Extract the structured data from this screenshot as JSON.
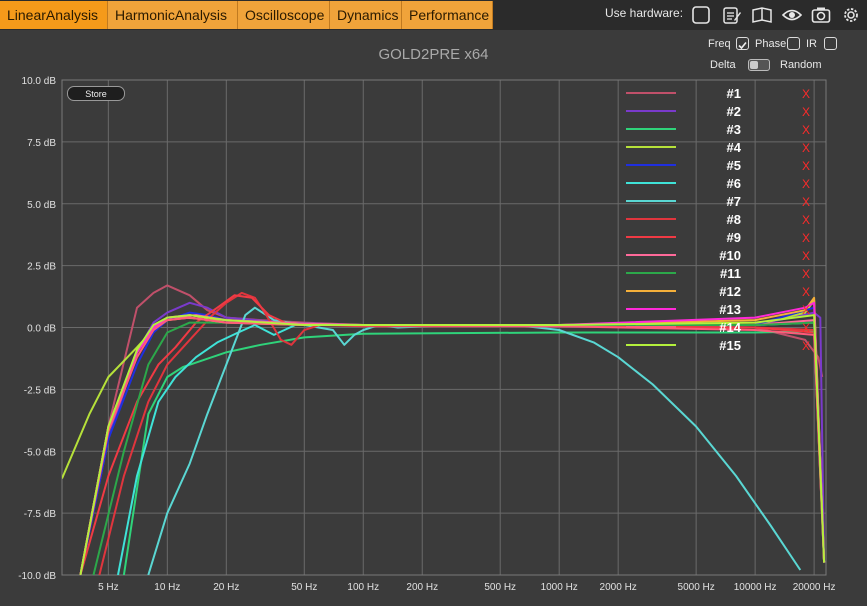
{
  "tabs": [
    {
      "label": "LinearAnalysis"
    },
    {
      "label": "HarmonicAnalysis"
    },
    {
      "label": "Oscilloscope"
    },
    {
      "label": "Dynamics"
    },
    {
      "label": "Performance"
    }
  ],
  "hardware": {
    "label": "Use hardware:",
    "icons": [
      "checkbox-icon",
      "edit-icon",
      "book-icon",
      "eye-icon",
      "camera-icon",
      "gear-icon"
    ]
  },
  "plot_title": "GOLD2PRE x64",
  "options": {
    "freq": "Freq",
    "phase": "Phase",
    "ir": "IR",
    "delta": "Delta",
    "random": "Random",
    "freq_checked": true,
    "phase_checked": false,
    "ir_checked": false
  },
  "store_label": "Store",
  "colors": {
    "bg": "#3b3b3b",
    "tab": "#f0a33a",
    "grid": "#6a6a6a",
    "remove": "#ff2a2a"
  },
  "chart_data": {
    "type": "line",
    "title": "",
    "xscale": "log",
    "xlim": [
      2.9,
      23000
    ],
    "ylim": [
      -10,
      10
    ],
    "xticks": [
      5,
      10,
      20,
      50,
      100,
      200,
      500,
      1000,
      2000,
      5000,
      10000,
      20000
    ],
    "xtick_labels": [
      "5 Hz",
      "10 Hz",
      "20 Hz",
      "50 Hz",
      "100 Hz",
      "200 Hz",
      "500 Hz",
      "1000 Hz",
      "2000 Hz",
      "5000 Hz",
      "10000 Hz",
      "20000 Hz"
    ],
    "yticks": [
      10,
      7.5,
      5,
      2.5,
      0,
      -2.5,
      -5,
      -7.5,
      -10
    ],
    "ytick_labels": [
      "10.0 dB",
      "7.5 dB",
      "5.0 dB",
      "2.5 dB",
      "0.0 dB",
      "-2.5 dB",
      "-5.0 dB",
      "-7.5 dB",
      "-10.0 dB"
    ],
    "grid": true,
    "legend_position": "top-right",
    "remove_symbol": "X",
    "series": [
      {
        "name": "#1",
        "color": "#c0506a",
        "points": [
          [
            3.6,
            -10
          ],
          [
            5,
            -4
          ],
          [
            7,
            0.8
          ],
          [
            8.5,
            1.4
          ],
          [
            10,
            1.7
          ],
          [
            13,
            1.3
          ],
          [
            16,
            0.7
          ],
          [
            20,
            0.4
          ],
          [
            30,
            0.3
          ],
          [
            50,
            0.2
          ],
          [
            100,
            0.1
          ],
          [
            1000,
            0.1
          ],
          [
            10000,
            0.0
          ],
          [
            18000,
            -0.5
          ],
          [
            21000,
            -1.2
          ],
          [
            22000,
            -2
          ]
        ]
      },
      {
        "name": "#2",
        "color": "#7a3acb",
        "points": [
          [
            3.6,
            -10
          ],
          [
            5,
            -4.5
          ],
          [
            7,
            -1
          ],
          [
            8.5,
            0.2
          ],
          [
            10,
            0.6
          ],
          [
            13,
            1.0
          ],
          [
            16,
            0.8
          ],
          [
            20,
            0.4
          ],
          [
            40,
            0.2
          ],
          [
            100,
            0.1
          ],
          [
            1000,
            0.1
          ],
          [
            10000,
            0.1
          ],
          [
            20000,
            0.6
          ],
          [
            21500,
            0.4
          ],
          [
            22500,
            -9.5
          ]
        ]
      },
      {
        "name": "#3",
        "color": "#2fd37a",
        "points": [
          [
            6,
            -10
          ],
          [
            8,
            -3.5
          ],
          [
            10,
            -2.0
          ],
          [
            12,
            -1.6
          ],
          [
            20,
            -1.0
          ],
          [
            30,
            -0.7
          ],
          [
            50,
            -0.4
          ],
          [
            100,
            -0.25
          ],
          [
            1000,
            -0.2
          ],
          [
            10000,
            -0.2
          ],
          [
            20000,
            -0.15
          ],
          [
            22500,
            -9.5
          ]
        ]
      },
      {
        "name": "#4",
        "color": "#b6e13a",
        "points": [
          [
            2.9,
            -6.1
          ],
          [
            4,
            -3.5
          ],
          [
            5,
            -2.0
          ],
          [
            7,
            -0.8
          ],
          [
            8,
            -0.3
          ],
          [
            10,
            0.3
          ],
          [
            12,
            0.4
          ],
          [
            20,
            0.3
          ],
          [
            50,
            0.15
          ],
          [
            100,
            0.1
          ],
          [
            1000,
            0.1
          ],
          [
            10000,
            0.1
          ],
          [
            18000,
            0.6
          ],
          [
            20000,
            1.1
          ],
          [
            22500,
            -9.5
          ]
        ]
      },
      {
        "name": "#5",
        "color": "#1f2fe0",
        "points": [
          [
            3.6,
            -10
          ],
          [
            5,
            -4.5
          ],
          [
            7,
            -1.5
          ],
          [
            8.5,
            -0.2
          ],
          [
            10,
            0.3
          ],
          [
            13,
            0.6
          ],
          [
            16,
            0.5
          ],
          [
            20,
            0.3
          ],
          [
            50,
            0.1
          ],
          [
            1000,
            0.05
          ],
          [
            10000,
            0.1
          ],
          [
            20000,
            0.8
          ],
          [
            22500,
            -9.5
          ]
        ]
      },
      {
        "name": "#6",
        "color": "#3fe3d8",
        "points": [
          [
            5.6,
            -10
          ],
          [
            7,
            -6
          ],
          [
            9,
            -3
          ],
          [
            11,
            -2
          ],
          [
            14,
            -1.2
          ],
          [
            18,
            -0.6
          ],
          [
            23,
            -0.2
          ],
          [
            28,
            0.1
          ],
          [
            35,
            -0.3
          ],
          [
            45,
            0.1
          ],
          [
            60,
            0.1
          ],
          [
            100,
            0.1
          ],
          [
            1000,
            0.1
          ],
          [
            10000,
            0.1
          ],
          [
            20000,
            0.2
          ],
          [
            22500,
            -9.5
          ]
        ]
      },
      {
        "name": "#7",
        "color": "#5ad7d3",
        "points": [
          [
            8,
            -10
          ],
          [
            10,
            -7.5
          ],
          [
            13,
            -5.5
          ],
          [
            16,
            -3.5
          ],
          [
            20,
            -1.5
          ],
          [
            25,
            0.5
          ],
          [
            28,
            0.8
          ],
          [
            35,
            0.3
          ],
          [
            50,
            0.1
          ],
          [
            70,
            -0.1
          ],
          [
            80,
            -0.7
          ],
          [
            90,
            -0.3
          ],
          [
            100,
            -0.1
          ],
          [
            120,
            0.1
          ],
          [
            150,
            0.0
          ],
          [
            300,
            0.1
          ],
          [
            600,
            0.1
          ],
          [
            1000,
            -0.1
          ],
          [
            1500,
            -0.6
          ],
          [
            2000,
            -1.2
          ],
          [
            3000,
            -2.3
          ],
          [
            5000,
            -4.0
          ],
          [
            8000,
            -6.0
          ],
          [
            12000,
            -8.0
          ],
          [
            17000,
            -9.8
          ]
        ]
      },
      {
        "name": "#8",
        "color": "#e0353d",
        "points": [
          [
            4.5,
            -10
          ],
          [
            6,
            -6
          ],
          [
            8,
            -3
          ],
          [
            10,
            -1.5
          ],
          [
            13,
            -0.5
          ],
          [
            17,
            0.5
          ],
          [
            20,
            1.0
          ],
          [
            24,
            1.4
          ],
          [
            28,
            1.2
          ],
          [
            32,
            0.5
          ],
          [
            38,
            -0.5
          ],
          [
            43,
            -0.7
          ],
          [
            50,
            -0.1
          ],
          [
            60,
            0.1
          ],
          [
            100,
            0.05
          ],
          [
            1000,
            0.05
          ],
          [
            10000,
            0.0
          ],
          [
            20000,
            -0.1
          ],
          [
            22500,
            -9.5
          ]
        ]
      },
      {
        "name": "#9",
        "color": "#f03a44",
        "points": [
          [
            3.6,
            -10
          ],
          [
            5,
            -6
          ],
          [
            7,
            -3
          ],
          [
            9,
            -1.5
          ],
          [
            11,
            -0.8
          ],
          [
            14,
            0.2
          ],
          [
            18,
            0.8
          ],
          [
            22,
            1.3
          ],
          [
            27,
            1.2
          ],
          [
            33,
            0.5
          ],
          [
            40,
            0.2
          ],
          [
            60,
            0.1
          ],
          [
            100,
            0.1
          ],
          [
            1000,
            0.05
          ],
          [
            10000,
            0.0
          ],
          [
            20000,
            -0.2
          ],
          [
            22500,
            -9.5
          ]
        ]
      },
      {
        "name": "#10",
        "color": "#ff6a9a",
        "points": [
          [
            3.6,
            -10
          ],
          [
            5,
            -4
          ],
          [
            7,
            -1.0
          ],
          [
            8.5,
            0.0
          ],
          [
            10,
            0.4
          ],
          [
            14,
            0.5
          ],
          [
            20,
            0.3
          ],
          [
            50,
            0.15
          ],
          [
            100,
            0.1
          ],
          [
            1000,
            0.1
          ],
          [
            10000,
            0.1
          ],
          [
            20000,
            0.3
          ],
          [
            22500,
            -9.5
          ]
        ]
      },
      {
        "name": "#11",
        "color": "#2ca84a",
        "points": [
          [
            4.2,
            -10
          ],
          [
            6,
            -5
          ],
          [
            8,
            -1.5
          ],
          [
            10,
            -0.2
          ],
          [
            13,
            0.2
          ],
          [
            20,
            0.2
          ],
          [
            50,
            0.1
          ],
          [
            100,
            0.1
          ],
          [
            1000,
            0.1
          ],
          [
            10000,
            0.1
          ],
          [
            20000,
            0.2
          ],
          [
            22500,
            -9.5
          ]
        ]
      },
      {
        "name": "#12",
        "color": "#f5b03a",
        "points": [
          [
            3.6,
            -10
          ],
          [
            5,
            -4
          ],
          [
            7,
            -1.0
          ],
          [
            8.5,
            0.0
          ],
          [
            10,
            0.3
          ],
          [
            13,
            0.4
          ],
          [
            20,
            0.2
          ],
          [
            50,
            0.1
          ],
          [
            1000,
            0.1
          ],
          [
            10000,
            0.3
          ],
          [
            18000,
            0.7
          ],
          [
            20000,
            1.2
          ],
          [
            22500,
            -9.5
          ]
        ]
      },
      {
        "name": "#13",
        "color": "#ff2ad8",
        "points": [
          [
            3.6,
            -10
          ],
          [
            5,
            -4
          ],
          [
            7,
            -1.0
          ],
          [
            8.5,
            0.0
          ],
          [
            10,
            0.4
          ],
          [
            13,
            0.5
          ],
          [
            20,
            0.3
          ],
          [
            50,
            0.1
          ],
          [
            1000,
            0.1
          ],
          [
            10000,
            0.4
          ],
          [
            18000,
            0.8
          ],
          [
            20000,
            1.0
          ],
          [
            22500,
            -9.5
          ]
        ]
      },
      {
        "name": "#14",
        "color": "#ff5a7a",
        "points": [
          [
            3.6,
            -10
          ],
          [
            5,
            -4.2
          ],
          [
            7,
            -1.2
          ],
          [
            8.5,
            -0.1
          ],
          [
            10,
            0.3
          ],
          [
            13,
            0.4
          ],
          [
            20,
            0.2
          ],
          [
            50,
            0.1
          ],
          [
            1000,
            0.05
          ],
          [
            10000,
            -0.1
          ],
          [
            20000,
            -0.3
          ],
          [
            22500,
            -9.5
          ]
        ]
      },
      {
        "name": "#15",
        "color": "#b4f03c",
        "points": [
          [
            3.6,
            -10
          ],
          [
            5,
            -4
          ],
          [
            7,
            -0.9
          ],
          [
            8.5,
            0.1
          ],
          [
            10,
            0.4
          ],
          [
            13,
            0.5
          ],
          [
            20,
            0.3
          ],
          [
            50,
            0.1
          ],
          [
            1000,
            0.1
          ],
          [
            10000,
            0.2
          ],
          [
            20000,
            0.5
          ],
          [
            22500,
            -9.5
          ]
        ]
      }
    ]
  }
}
